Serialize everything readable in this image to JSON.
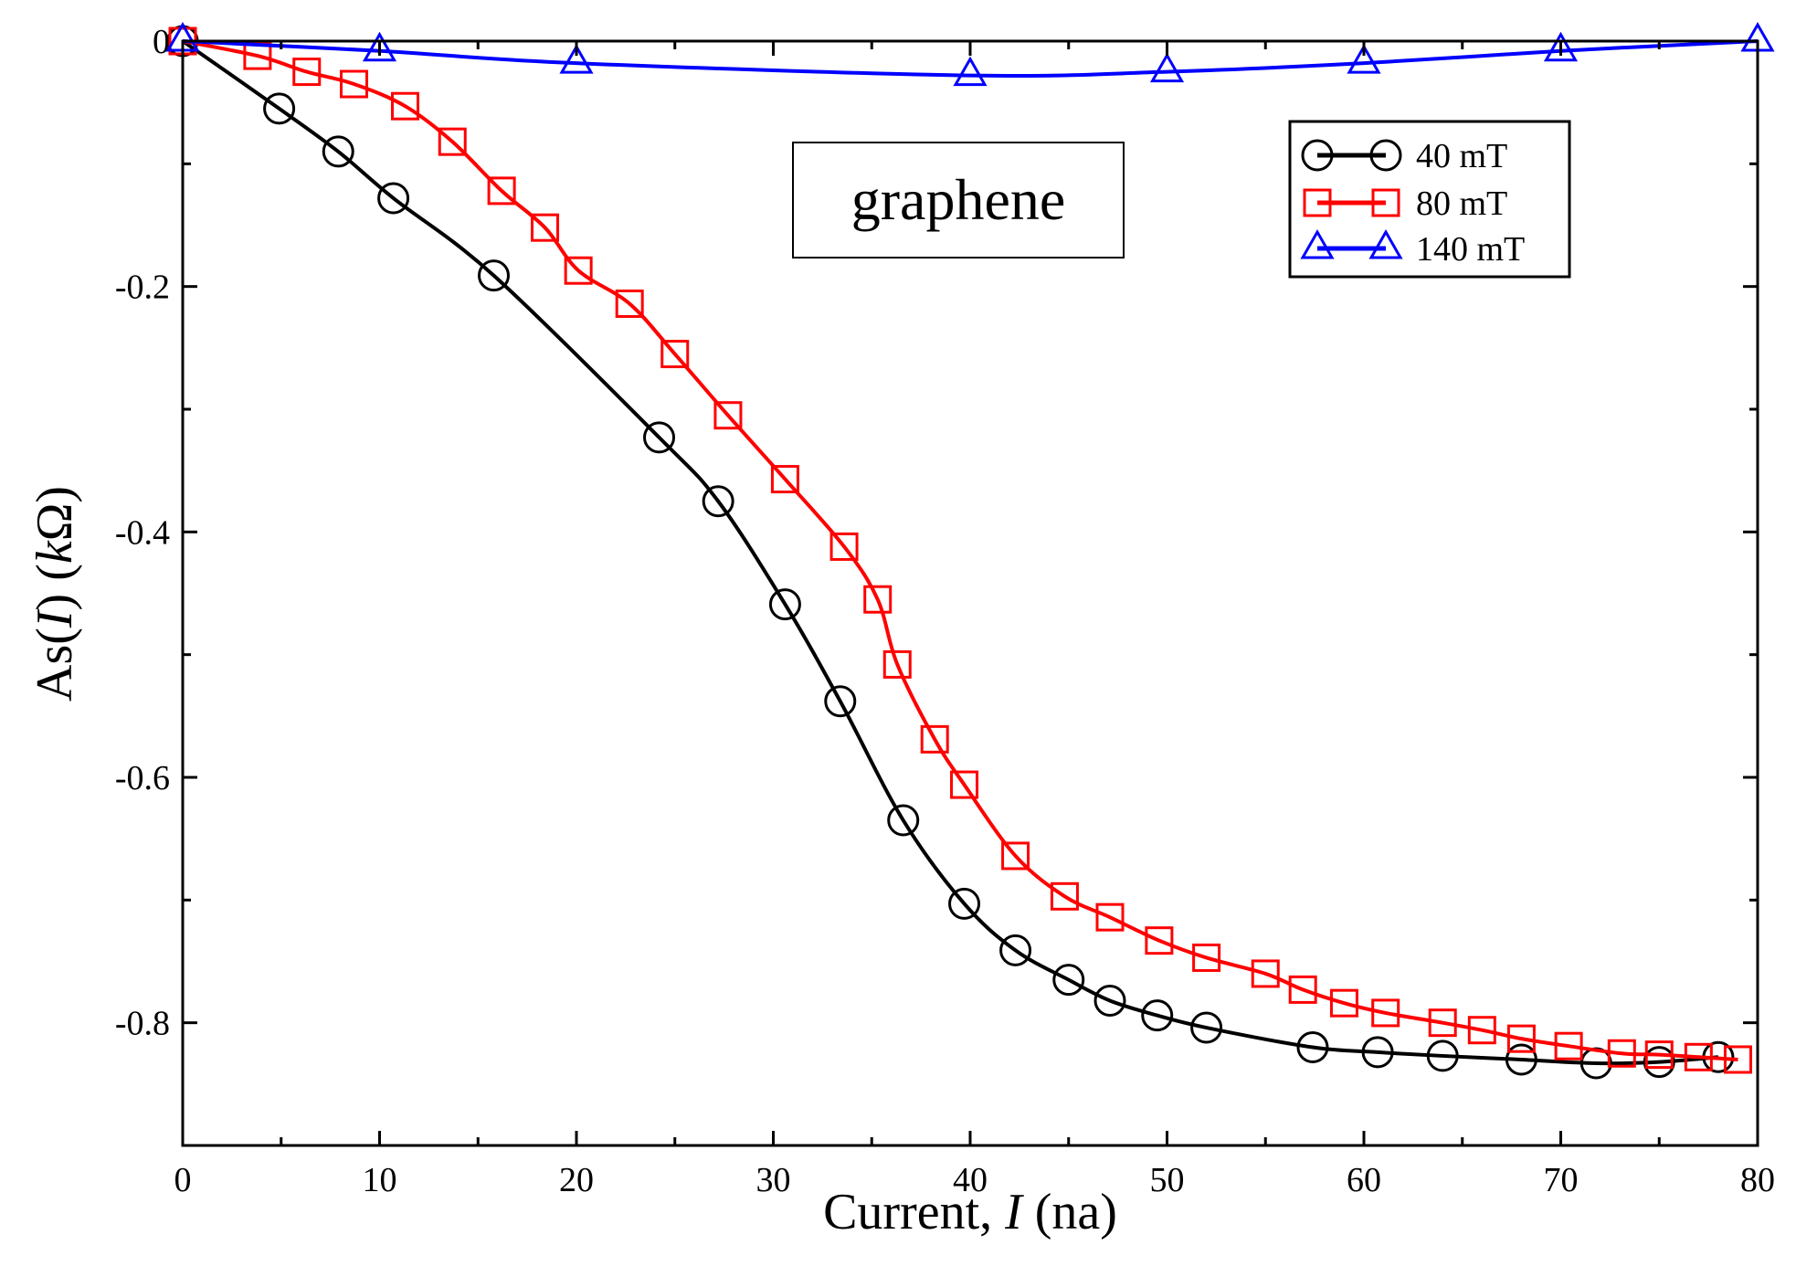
{
  "chart_data": {
    "type": "line",
    "title": "",
    "xlabel": "Current, I (na)",
    "xlabel_parts": {
      "prefix": "Current, ",
      "italic": "I",
      "suffix": " (na)"
    },
    "ylabel": "As(I) (kΩ)",
    "ylabel_parts": {
      "prefix": "As(",
      "italic": "I",
      "middle": ") (",
      "italic2": "k",
      "suffix": "Ω)"
    },
    "xlim": [
      0,
      80
    ],
    "ylim": [
      -0.9,
      0
    ],
    "xticks": [
      0,
      10,
      20,
      30,
      40,
      50,
      60,
      70,
      80
    ],
    "xtick_labels": [
      "0",
      "10",
      "20",
      "30",
      "40",
      "50",
      "60",
      "70",
      "80"
    ],
    "xminor": [
      5,
      15,
      25,
      35,
      45,
      55,
      65,
      75
    ],
    "yticks": [
      0,
      -0.2,
      -0.4,
      -0.6,
      -0.8
    ],
    "ytick_labels": [
      "0",
      "-0.2",
      "-0.4",
      "-0.6",
      "-0.8"
    ],
    "yminor": [
      -0.1,
      -0.3,
      -0.5,
      -0.7,
      -0.9
    ],
    "grid": false,
    "annotation": "graphene",
    "legend_position": "top-right",
    "series": [
      {
        "name": "40 mT",
        "color": "#000000",
        "marker": "circle",
        "x": [
          0,
          4.9,
          7.9,
          10.7,
          15.8,
          24.2,
          27.2,
          30.6,
          33.4,
          36.6,
          39.7,
          42.3,
          45,
          47.1,
          49.5,
          52,
          57.4,
          60.7,
          64,
          68,
          71.8,
          75,
          78
        ],
        "y": [
          0,
          -0.055,
          -0.09,
          -0.128,
          -0.191,
          -0.323,
          -0.375,
          -0.459,
          -0.538,
          -0.635,
          -0.703,
          -0.741,
          -0.765,
          -0.782,
          -0.794,
          -0.804,
          -0.82,
          -0.824,
          -0.827,
          -0.83,
          -0.833,
          -0.832,
          -0.828
        ]
      },
      {
        "name": "80 mT",
        "color": "#ff0000",
        "marker": "square",
        "x": [
          0,
          3.8,
          6.3,
          8.7,
          11.3,
          13.7,
          16.2,
          18.4,
          20.1,
          22.7,
          25,
          27.7,
          30.6,
          33.6,
          35.3,
          36.3,
          38.2,
          39.7,
          42.3,
          44.8,
          47.1,
          49.6,
          52,
          55,
          56.9,
          59,
          61.1,
          64,
          66,
          68,
          70.4,
          73.1,
          75,
          77,
          79
        ],
        "y": [
          0,
          -0.012,
          -0.025,
          -0.035,
          -0.053,
          -0.082,
          -0.122,
          -0.152,
          -0.187,
          -0.214,
          -0.255,
          -0.305,
          -0.357,
          -0.412,
          -0.455,
          -0.508,
          -0.569,
          -0.606,
          -0.664,
          -0.697,
          -0.714,
          -0.733,
          -0.747,
          -0.76,
          -0.773,
          -0.784,
          -0.792,
          -0.8,
          -0.806,
          -0.813,
          -0.819,
          -0.825,
          -0.826,
          -0.828,
          -0.83
        ]
      },
      {
        "name": "140 mT",
        "color": "#0000ff",
        "marker": "triangle",
        "x": [
          0,
          10,
          20,
          40,
          50,
          60,
          70,
          80
        ],
        "y": [
          0,
          -0.008,
          -0.018,
          -0.028,
          -0.025,
          -0.018,
          -0.008,
          0
        ]
      }
    ]
  },
  "colors": {
    "background": "#ffffff",
    "axis": "#000000",
    "series_40": "#000000",
    "series_80": "#ff0000",
    "series_140": "#0000ff"
  }
}
